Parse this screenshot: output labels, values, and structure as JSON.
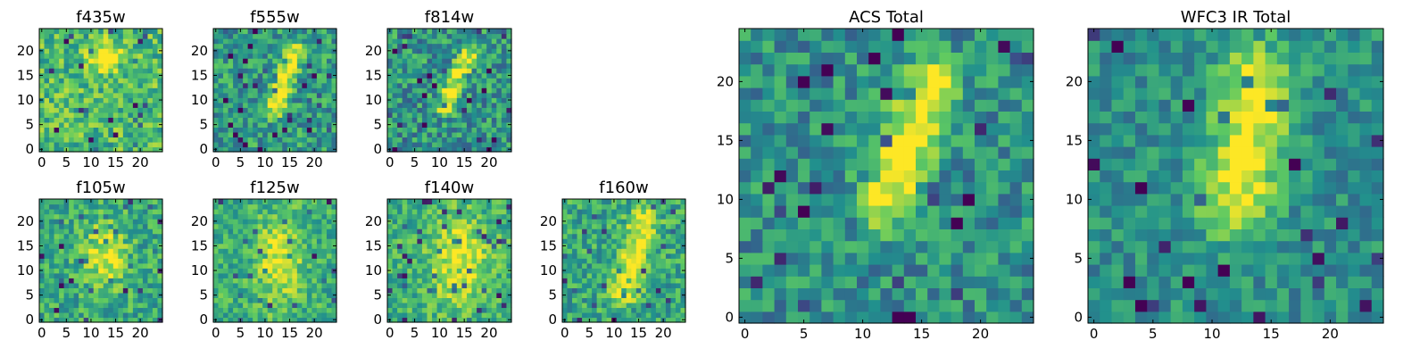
{
  "figure": {
    "colormap": "viridis",
    "colormap_stops": [
      "#440154",
      "#3b528b",
      "#21908d",
      "#5dc962",
      "#fde725"
    ]
  },
  "chart_data": [
    {
      "type": "heatmap",
      "title": "f435w",
      "grid_size": [
        25,
        25
      ],
      "xlim": [
        0,
        24
      ],
      "ylim": [
        0,
        24
      ],
      "xticks": [
        0,
        5,
        10,
        15,
        20
      ],
      "yticks": [
        0,
        5,
        10,
        15,
        20
      ],
      "features": [
        {
          "kind": "blob",
          "x": 13,
          "y": 19,
          "amplitude": 0.5,
          "sx": 2,
          "sy": 2
        }
      ],
      "base": 0.68,
      "noise": 0.22,
      "seed": 11
    },
    {
      "type": "heatmap",
      "title": "f555w",
      "grid_size": [
        25,
        25
      ],
      "xlim": [
        0,
        24
      ],
      "ylim": [
        0,
        24
      ],
      "xticks": [
        0,
        5,
        10,
        15,
        20
      ],
      "yticks": [
        0,
        5,
        10,
        15,
        20
      ],
      "features": [
        {
          "kind": "streak",
          "x0": 12,
          "y0": 8,
          "x1": 16,
          "y1": 20,
          "amplitude": 0.45,
          "width": 1.3
        }
      ],
      "base": 0.55,
      "noise": 0.22,
      "seed": 23
    },
    {
      "type": "heatmap",
      "title": "f814w",
      "grid_size": [
        25,
        25
      ],
      "xlim": [
        0,
        24
      ],
      "ylim": [
        0,
        24
      ],
      "xticks": [
        0,
        5,
        10,
        15,
        20
      ],
      "yticks": [
        0,
        5,
        10,
        15,
        20
      ],
      "features": [
        {
          "kind": "streak",
          "x0": 11,
          "y0": 9,
          "x1": 16,
          "y1": 20,
          "amplitude": 0.5,
          "width": 1.2
        }
      ],
      "base": 0.52,
      "noise": 0.24,
      "seed": 37
    },
    {
      "type": "heatmap",
      "title": "f105w",
      "grid_size": [
        25,
        25
      ],
      "xlim": [
        0,
        24
      ],
      "ylim": [
        0,
        24
      ],
      "xticks": [
        0,
        5,
        10,
        15,
        20
      ],
      "yticks": [
        0,
        5,
        10,
        15,
        20
      ],
      "features": [
        {
          "kind": "blob",
          "x": 13,
          "y": 13,
          "amplitude": 0.35,
          "sx": 3,
          "sy": 5
        }
      ],
      "base": 0.6,
      "noise": 0.2,
      "seed": 41
    },
    {
      "type": "heatmap",
      "title": "f125w",
      "grid_size": [
        25,
        25
      ],
      "xlim": [
        0,
        24
      ],
      "ylim": [
        0,
        24
      ],
      "xticks": [
        0,
        5,
        10,
        15,
        20
      ],
      "yticks": [
        0,
        5,
        10,
        15,
        20
      ],
      "features": [
        {
          "kind": "blob",
          "x": 13,
          "y": 12,
          "amplitude": 0.35,
          "sx": 3,
          "sy": 6
        }
      ],
      "base": 0.63,
      "noise": 0.18,
      "seed": 53
    },
    {
      "type": "heatmap",
      "title": "f140w",
      "grid_size": [
        25,
        25
      ],
      "xlim": [
        0,
        24
      ],
      "ylim": [
        0,
        24
      ],
      "xticks": [
        0,
        5,
        10,
        15,
        20
      ],
      "yticks": [
        0,
        5,
        10,
        15,
        20
      ],
      "features": [
        {
          "kind": "blob",
          "x": 14,
          "y": 12,
          "amplitude": 0.35,
          "sx": 4,
          "sy": 6
        }
      ],
      "base": 0.64,
      "noise": 0.18,
      "seed": 67
    },
    {
      "type": "heatmap",
      "title": "f160w",
      "grid_size": [
        25,
        25
      ],
      "xlim": [
        0,
        24
      ],
      "ylim": [
        0,
        24
      ],
      "xticks": [
        0,
        5,
        10,
        15,
        20
      ],
      "yticks": [
        0,
        5,
        10,
        15,
        20
      ],
      "features": [
        {
          "kind": "streak",
          "x0": 12,
          "y0": 6,
          "x1": 16,
          "y1": 20,
          "amplitude": 0.4,
          "width": 2
        }
      ],
      "base": 0.6,
      "noise": 0.2,
      "seed": 79
    },
    {
      "type": "heatmap",
      "title": "ACS Total",
      "grid_size": [
        25,
        25
      ],
      "xlim": [
        0,
        24
      ],
      "ylim": [
        0,
        24
      ],
      "xticks": [
        0,
        5,
        10,
        15,
        20
      ],
      "yticks": [
        0,
        5,
        10,
        15,
        20
      ],
      "features": [
        {
          "kind": "streak",
          "x0": 12,
          "y0": 10,
          "x1": 16,
          "y1": 20,
          "amplitude": 0.55,
          "width": 1.6
        }
      ],
      "base": 0.5,
      "noise": 0.2,
      "seed": 97
    },
    {
      "type": "heatmap",
      "title": "WFC3 IR Total",
      "grid_size": [
        25,
        25
      ],
      "xlim": [
        0,
        24
      ],
      "ylim": [
        0,
        24
      ],
      "xticks": [
        0,
        5,
        10,
        15,
        20
      ],
      "yticks": [
        0,
        5,
        10,
        15,
        20
      ],
      "features": [
        {
          "kind": "streak",
          "x0": 12,
          "y0": 10,
          "x1": 14,
          "y1": 20,
          "amplitude": 0.5,
          "width": 2.2
        }
      ],
      "base": 0.5,
      "noise": 0.16,
      "seed": 131
    }
  ]
}
